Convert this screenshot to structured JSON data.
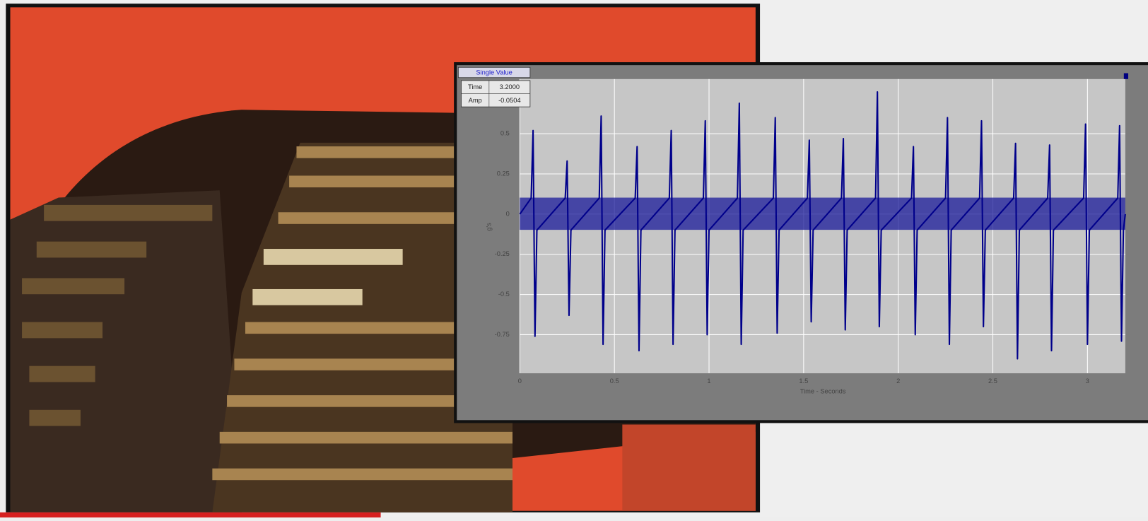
{
  "chart_data": {
    "type": "line",
    "xlabel": "Time - Seconds",
    "ylabel": "g's",
    "xlim": [
      0,
      3.2
    ],
    "ylim": [
      -0.99,
      0.84
    ],
    "xticks": [
      0,
      0.5,
      1,
      1.5,
      2,
      2.5,
      3
    ],
    "yticks": [
      -0.75,
      -0.5,
      -0.25,
      0,
      0.25,
      0.5
    ],
    "grid": true,
    "x": [
      0,
      0.06,
      0.07,
      0.08,
      0.09,
      0.24,
      0.25,
      0.26,
      0.27,
      0.42,
      0.43,
      0.44,
      0.45,
      0.61,
      0.62,
      0.63,
      0.64,
      0.79,
      0.8,
      0.81,
      0.82,
      0.97,
      0.98,
      0.99,
      1.0,
      1.15,
      1.16,
      1.17,
      1.18,
      1.34,
      1.35,
      1.36,
      1.37,
      1.52,
      1.53,
      1.54,
      1.55,
      1.7,
      1.71,
      1.72,
      1.73,
      1.88,
      1.89,
      1.9,
      1.91,
      2.07,
      2.08,
      2.09,
      2.1,
      2.25,
      2.26,
      2.27,
      2.28,
      2.43,
      2.44,
      2.45,
      2.46,
      2.61,
      2.62,
      2.63,
      2.64,
      2.79,
      2.8,
      2.81,
      2.82,
      2.98,
      2.99,
      3.0,
      3.01,
      3.16,
      3.17,
      3.18,
      3.19,
      3.2
    ],
    "series": [
      {
        "color": "#00008b",
        "values": [
          0,
          0.1,
          0.52,
          -0.76,
          -0.1,
          0.1,
          0.33,
          -0.63,
          -0.1,
          0.1,
          0.61,
          -0.81,
          -0.1,
          0.1,
          0.42,
          -0.85,
          -0.1,
          0.1,
          0.52,
          -0.81,
          -0.1,
          0.1,
          0.58,
          -0.75,
          -0.1,
          0.1,
          0.69,
          -0.81,
          -0.1,
          0.1,
          0.6,
          -0.74,
          -0.1,
          0.1,
          0.46,
          -0.67,
          -0.1,
          0.1,
          0.47,
          -0.72,
          -0.1,
          0.1,
          0.76,
          -0.7,
          -0.1,
          0.1,
          0.42,
          -0.75,
          -0.1,
          0.1,
          0.6,
          -0.81,
          -0.1,
          0.1,
          0.58,
          -0.7,
          -0.1,
          0.1,
          0.44,
          -0.9,
          -0.1,
          0.1,
          0.43,
          -0.85,
          -0.1,
          0.1,
          0.56,
          -0.81,
          -0.1,
          0.1,
          0.55,
          -0.79,
          -0.1,
          0
        ]
      }
    ]
  },
  "cursor_box": {
    "title": "Single Value",
    "rows": [
      [
        "Time",
        "3.2000"
      ],
      [
        "Amp",
        "-0.0504"
      ]
    ]
  }
}
